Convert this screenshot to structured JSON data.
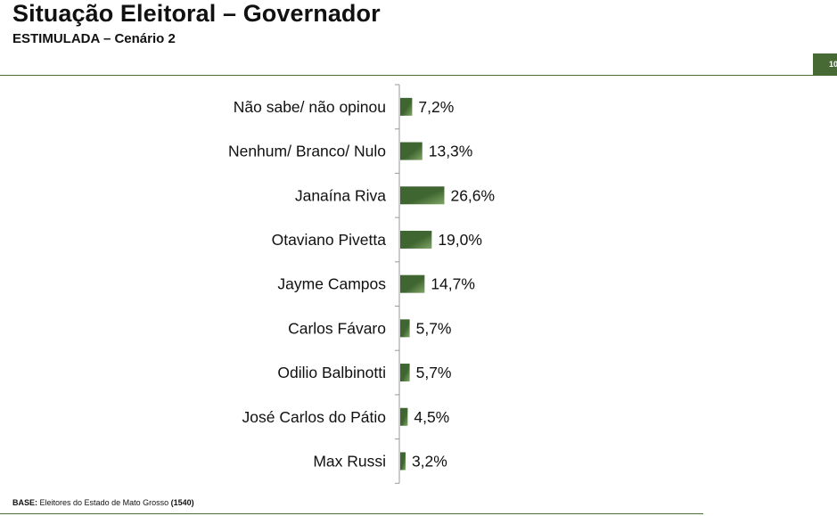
{
  "header": {
    "title": "Situação Eleitoral – Governador",
    "subtitle": "ESTIMULADA – Cenário 2",
    "page_number": "10"
  },
  "footer": {
    "base_label": "BASE:",
    "base_text": "Eleitores do Estado de Mato Grosso",
    "base_count": "(1540)"
  },
  "colors": {
    "bar_dark": "#3f6530",
    "bar_light": "#7fa565",
    "axis": "#9a9a9a",
    "rule": "#4f6f38"
  },
  "chart_data": {
    "type": "bar",
    "orientation": "horizontal",
    "categories": [
      "Não sabe/ não opinou",
      "Nenhum/ Branco/ Nulo",
      "Janaína Riva",
      "Otaviano Pivetta",
      "Jayme Campos",
      "Carlos Fávaro",
      "Odilio Balbinotti",
      "José Carlos do Pátio",
      "Max Russi"
    ],
    "values": [
      7.2,
      13.3,
      26.6,
      19.0,
      14.7,
      5.7,
      5.7,
      4.5,
      3.2
    ],
    "value_labels": [
      "7,2%",
      "13,3%",
      "26,6%",
      "19,0%",
      "14,7%",
      "5,7%",
      "5,7%",
      "4,5%",
      "3,2%"
    ],
    "unit": "%",
    "title": "",
    "xlabel": "",
    "ylabel": "",
    "grid": false
  }
}
